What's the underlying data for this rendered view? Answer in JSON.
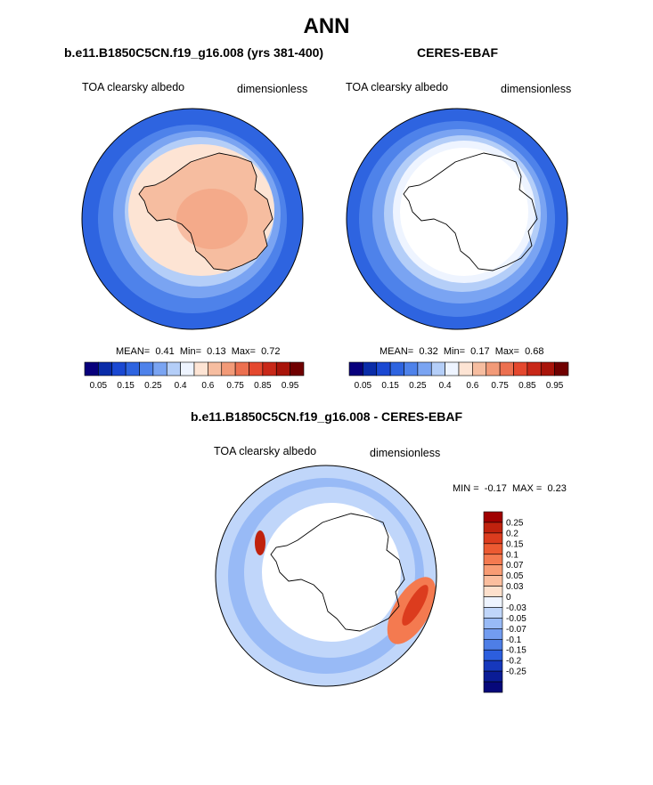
{
  "page": {
    "title": "ANN"
  },
  "colors": {
    "ocean_blue": "#2e64e0",
    "sea_ice_blue": "#9dbcf5",
    "warm_orange": "#f6bda0",
    "land_boundary": "#000000"
  },
  "chart_data": [
    {
      "type": "heatmap",
      "projection": "south-polar-stereographic",
      "title": "b.e11.B1850C5CN.f19_g16.008 (yrs 381-400)",
      "variable_label": "TOA clearsky albedo",
      "units_label": "dimensionless",
      "stats": {
        "mean_label": "MEAN=",
        "mean": "0.41",
        "min_label": "Min=",
        "min": "0.13",
        "max_label": "Max=",
        "max": "0.72"
      },
      "colorbar": {
        "orientation": "horizontal",
        "levels": [
          0.05,
          0.1,
          0.15,
          0.2,
          0.25,
          0.3,
          0.4,
          0.5,
          0.6,
          0.7,
          0.75,
          0.8,
          0.85,
          0.9,
          0.95
        ],
        "tick_labels": [
          "0.05",
          "0.15",
          "0.25",
          "0.4",
          "0.6",
          "0.75",
          "0.85",
          "0.95"
        ],
        "colors": [
          "#08007c",
          "#0a2ca8",
          "#1a48d2",
          "#2e64e0",
          "#4e82ea",
          "#7aa4f2",
          "#b4cef8",
          "#eef4ff",
          "#fde4d4",
          "#f6bda0",
          "#f29a78",
          "#ec7050",
          "#e4482e",
          "#c82818",
          "#a8140a",
          "#700000"
        ]
      }
    },
    {
      "type": "heatmap",
      "projection": "south-polar-stereographic",
      "title": "CERES-EBAF",
      "variable_label": "TOA clearsky albedo",
      "units_label": "dimensionless",
      "stats": {
        "mean_label": "MEAN=",
        "mean": "0.32",
        "min_label": "Min=",
        "min": "0.17",
        "max_label": "Max=",
        "max": "0.68"
      },
      "colorbar": {
        "orientation": "horizontal",
        "levels": [
          0.05,
          0.1,
          0.15,
          0.2,
          0.25,
          0.3,
          0.4,
          0.5,
          0.6,
          0.7,
          0.75,
          0.8,
          0.85,
          0.9,
          0.95
        ],
        "tick_labels": [
          "0.05",
          "0.15",
          "0.25",
          "0.4",
          "0.6",
          "0.75",
          "0.85",
          "0.95"
        ],
        "colors": [
          "#08007c",
          "#0a2ca8",
          "#1a48d2",
          "#2e64e0",
          "#4e82ea",
          "#7aa4f2",
          "#b4cef8",
          "#eef4ff",
          "#fde4d4",
          "#f6bda0",
          "#f29a78",
          "#ec7050",
          "#e4482e",
          "#c82818",
          "#a8140a",
          "#700000"
        ]
      }
    },
    {
      "type": "heatmap",
      "projection": "south-polar-stereographic",
      "title": "b.e11.B1850C5CN.f19_g16.008 - CERES-EBAF",
      "variable_label": "TOA clearsky albedo",
      "units_label": "dimensionless",
      "stats": {
        "min_label": "MIN =",
        "min": "-0.17",
        "max_label": "MAX =",
        "max": "0.23"
      },
      "colorbar": {
        "orientation": "vertical",
        "tick_labels": [
          "0.25",
          "0.2",
          "0.15",
          "0.1",
          "0.07",
          "0.05",
          "0.03",
          "0",
          "-0.03",
          "-0.05",
          "-0.07",
          "-0.1",
          "-0.15",
          "-0.2",
          "-0.25"
        ],
        "colors": [
          "#a00000",
          "#c0220e",
          "#dc3c1e",
          "#ec5a32",
          "#f47a50",
          "#f89c74",
          "#fbbe9e",
          "#fde0cc",
          "#eef4ff",
          "#c0d6fa",
          "#98baf6",
          "#729cf0",
          "#4e7ee6",
          "#2c5ede",
          "#1638bc",
          "#0a1c96",
          "#06087a"
        ]
      }
    }
  ]
}
